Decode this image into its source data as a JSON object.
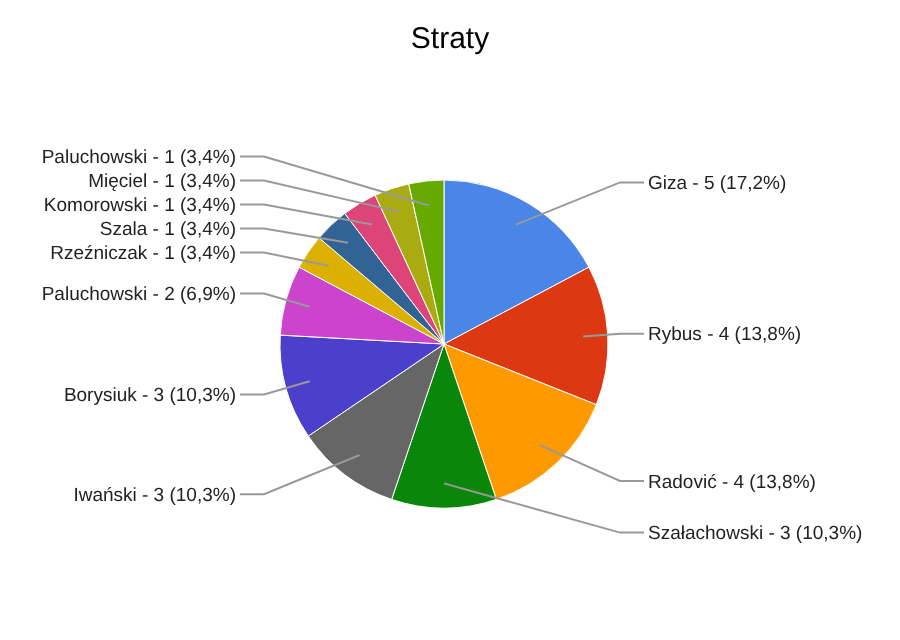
{
  "chart_data": {
    "type": "pie",
    "title": "Straty",
    "categories": [
      "Giza",
      "Rybus",
      "Radović",
      "Szałachowski",
      "Iwański",
      "Borysiuk",
      "Paluchowski",
      "Rzeźniczak",
      "Szala",
      "Komorowski",
      "Mięciel",
      "Paluchowski"
    ],
    "values": [
      5,
      4,
      4,
      3,
      3,
      3,
      2,
      1,
      1,
      1,
      1,
      1
    ],
    "value_labels": [
      "5 (17,2%)",
      "4 (13,8%)",
      "4 (13,8%)",
      "3 (10,3%)",
      "3 (10,3%)",
      "3 (10,3%)",
      "2 (6,9%)",
      "1 (3,4%)",
      "1 (3,4%)",
      "1 (3,4%)",
      "1 (3,4%)",
      "1 (3,4%)"
    ],
    "colors": [
      "#4a86e8",
      "#dc3912",
      "#ff9900",
      "#0a870a",
      "#666666",
      "#4b3fcc",
      "#cc44cc",
      "#dbb000",
      "#316395",
      "#dd4477",
      "#aaaa11",
      "#66aa00"
    ]
  }
}
